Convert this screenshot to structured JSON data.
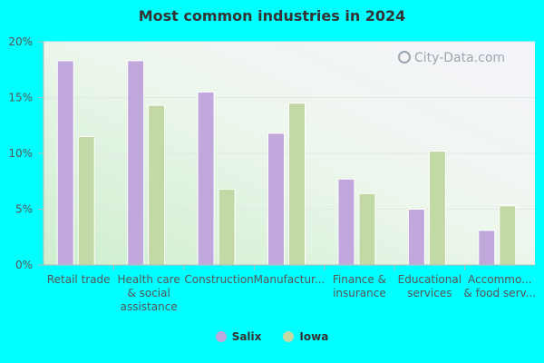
{
  "chart_data": {
    "type": "bar",
    "title": "Most common industries in 2024",
    "categories": [
      [
        "Retail trade"
      ],
      [
        "Health care",
        "& social",
        "assistance"
      ],
      [
        "Construction"
      ],
      [
        "Manufactur..."
      ],
      [
        "Finance &",
        "insurance"
      ],
      [
        "Educational",
        "services"
      ],
      [
        "Accommo...",
        "& food serv..."
      ]
    ],
    "series": [
      {
        "name": "Salix",
        "color": "#c0a8dc",
        "values": [
          18.3,
          18.3,
          15.5,
          11.8,
          7.7,
          5.0,
          3.1
        ]
      },
      {
        "name": "Iowa",
        "color": "#c3d9a5",
        "values": [
          11.5,
          14.3,
          6.8,
          14.5,
          6.4,
          10.2,
          5.3
        ]
      }
    ],
    "yticks": [
      "0%",
      "5%",
      "10%",
      "15%",
      "20%"
    ],
    "ylim": [
      0,
      20
    ],
    "grid": true,
    "legend": "bottom-center"
  },
  "watermark": "City-Data.com"
}
